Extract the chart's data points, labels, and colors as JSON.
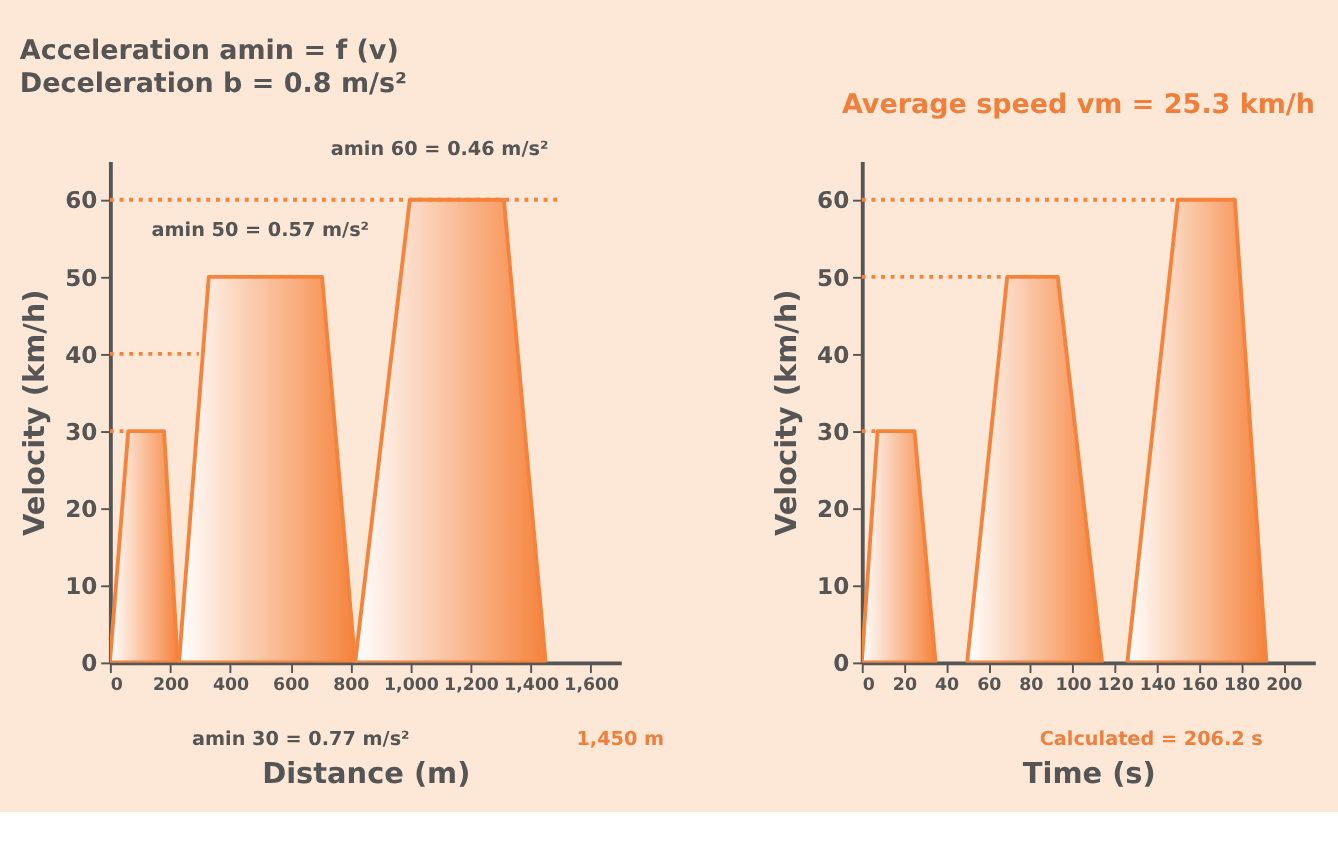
{
  "chart_data": [
    {
      "type": "area",
      "title": "Acceleration amin = f (v)",
      "subtitle": "Deceleration b = 0.8 m/s²",
      "xlabel": "Distance (m)",
      "ylabel": "Velocity (km/h)",
      "xlim": [
        0,
        1700
      ],
      "ylim": [
        0,
        65
      ],
      "xticks": [
        0,
        200,
        400,
        600,
        800,
        {
          "value": 1000,
          "label": "1,000"
        },
        {
          "value": 1200,
          "label": "1,200"
        },
        {
          "value": 1400,
          "label": "1,400"
        },
        {
          "value": 1600,
          "label": "1,600"
        }
      ],
      "yticks": [
        0,
        10,
        20,
        30,
        40,
        50,
        60
      ],
      "grid": false,
      "series": [
        {
          "type": "area",
          "color": "#f5833c",
          "x": [
            0,
            61,
            180,
            226
          ],
          "values": [
            0,
            30,
            30,
            0
          ]
        },
        {
          "type": "area",
          "color": "#f5833c",
          "x": [
            230,
            329,
            706,
            816
          ],
          "values": [
            0,
            50,
            50,
            0
          ]
        },
        {
          "type": "area",
          "color": "#f5833c",
          "x": [
            816,
            998,
            1311,
            1450
          ],
          "values": [
            0,
            60,
            60,
            0
          ]
        },
        {
          "type": "line",
          "color": "#f5833c",
          "line_style": "dotted",
          "x": [
            0,
            1490
          ],
          "values": [
            60,
            60
          ]
        },
        {
          "type": "line",
          "color": "#f5833c",
          "line_style": "dotted",
          "x": [
            0,
            296
          ],
          "values": [
            40,
            40
          ]
        },
        {
          "type": "line",
          "color": "#f5833c",
          "line_style": "dotted",
          "x": [
            0,
            55
          ],
          "values": [
            30,
            30
          ]
        }
      ],
      "annotations": [
        "amin 60 = 0.46 m/s²",
        "amin 50 = 0.57 m/s²",
        "amin 30 = 0.77 m/s²",
        "1,450 m"
      ]
    },
    {
      "type": "area",
      "title": "Average speed vm = 25.3 km/h",
      "xlabel": "Time (s)",
      "ylabel": "Velocity (km/h)",
      "xlim": [
        0,
        215
      ],
      "ylim": [
        0,
        65
      ],
      "xticks": [
        0,
        20,
        40,
        60,
        80,
        100,
        120,
        140,
        160,
        180,
        200
      ],
      "yticks": [
        0,
        10,
        20,
        30,
        40,
        50,
        60
      ],
      "grid": false,
      "series": [
        {
          "type": "area",
          "color": "#f5833c",
          "x": [
            0,
            7.5,
            25,
            35
          ],
          "values": [
            0,
            30,
            30,
            0
          ]
        },
        {
          "type": "area",
          "color": "#f5833c",
          "x": [
            50,
            69,
            93,
            114
          ],
          "values": [
            0,
            50,
            50,
            0
          ]
        },
        {
          "type": "area",
          "color": "#f5833c",
          "x": [
            126,
            150,
            177,
            192
          ],
          "values": [
            0,
            60,
            60,
            0
          ]
        },
        {
          "type": "line",
          "color": "#f5833c",
          "line_style": "dotted",
          "x": [
            0,
            150
          ],
          "values": [
            60,
            60
          ]
        },
        {
          "type": "line",
          "color": "#f5833c",
          "line_style": "dotted",
          "x": [
            0,
            69
          ],
          "values": [
            50,
            50
          ]
        },
        {
          "type": "line",
          "color": "#f5833c",
          "line_style": "dotted",
          "x": [
            0,
            7.5
          ],
          "values": [
            30,
            30
          ]
        }
      ],
      "annotations": [
        "Calculated = 206.2 s"
      ]
    }
  ]
}
